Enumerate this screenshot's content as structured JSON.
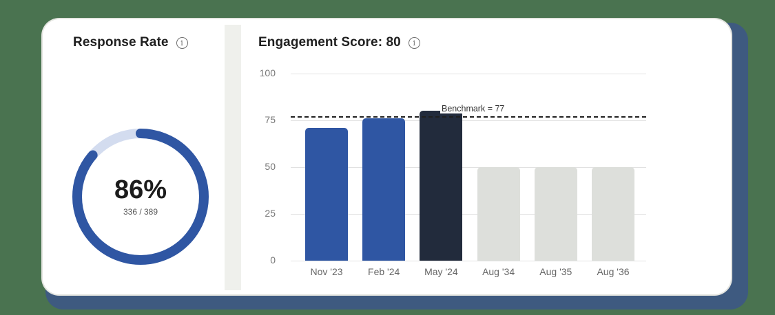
{
  "response_rate": {
    "title": "Response Rate",
    "info_icon": "info-icon",
    "percent_label": "86%",
    "fraction_label": "336 / 389",
    "value": 336,
    "total": 389,
    "percent": 86,
    "colors": {
      "filled": "#2f56a3",
      "track": "#d3dcef"
    }
  },
  "engagement": {
    "title": "Engagement Score: 80",
    "info_icon": "info-icon"
  },
  "chart_data": {
    "type": "bar",
    "title": "Engagement Score: 80",
    "categories": [
      "Nov '23",
      "Feb '24",
      "May '24",
      "Aug '34",
      "Aug '35",
      "Aug '36"
    ],
    "values": [
      71,
      76,
      80,
      50,
      50,
      50
    ],
    "bar_colors": [
      "#2f56a3",
      "#2f56a3",
      "#222b3c",
      "#dddfdb",
      "#dddfdb",
      "#dddfdb"
    ],
    "xlabel": "",
    "ylabel": "",
    "ylim": [
      0,
      100
    ],
    "yticks": [
      0,
      25,
      50,
      75,
      100
    ],
    "grid": true,
    "benchmark": {
      "value": 77,
      "label": "Benchmark = 77"
    },
    "legend": null
  }
}
